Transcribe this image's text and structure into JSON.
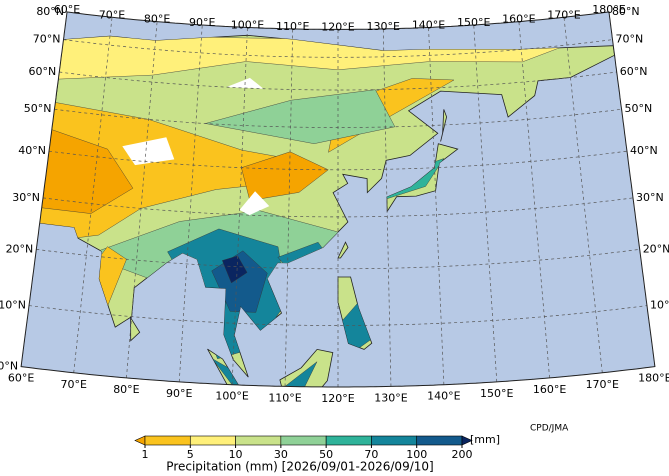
{
  "map": {
    "title": "Precipitation (mm) [2026/09/01-2026/09/10]",
    "unit": "[mm]",
    "credit": "CPD/JMA",
    "ocean_color": "#b7c9e5",
    "lat_ticks": [
      {
        "value": 0,
        "label": "0°N"
      },
      {
        "value": 10,
        "label": "10°N"
      },
      {
        "value": 20,
        "label": "20°N"
      },
      {
        "value": 30,
        "label": "30°N"
      },
      {
        "value": 40,
        "label": "40°N"
      },
      {
        "value": 50,
        "label": "50°N"
      },
      {
        "value": 60,
        "label": "60°N"
      },
      {
        "value": 70,
        "label": "70°N"
      },
      {
        "value": 80,
        "label": "80°N"
      }
    ],
    "lon_ticks": [
      {
        "value": 60,
        "label": "60°E"
      },
      {
        "value": 70,
        "label": "70°E"
      },
      {
        "value": 80,
        "label": "80°E"
      },
      {
        "value": 90,
        "label": "90°E"
      },
      {
        "value": 100,
        "label": "100°E"
      },
      {
        "value": 110,
        "label": "110°E"
      },
      {
        "value": 120,
        "label": "120°E"
      },
      {
        "value": 130,
        "label": "130°E"
      },
      {
        "value": 140,
        "label": "140°E"
      },
      {
        "value": 150,
        "label": "150°E"
      },
      {
        "value": 160,
        "label": "160°E"
      },
      {
        "value": 170,
        "label": "170°E"
      },
      {
        "value": 180,
        "label": "180°E"
      }
    ],
    "colorbar": {
      "ticks": [
        1,
        5,
        10,
        30,
        50,
        70,
        100,
        200
      ],
      "colors": [
        "#f5a400",
        "#fac31e",
        "#fff07a",
        "#c9e28a",
        "#8fd197",
        "#2fb39a",
        "#14859b",
        "#135a8c",
        "#0a2560"
      ]
    }
  }
}
